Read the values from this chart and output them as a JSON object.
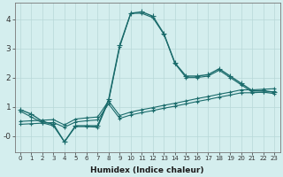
{
  "xlabel": "Humidex (Indice chaleur)",
  "bg_color": "#d4eeee",
  "line_color": "#1a6b6b",
  "grid_color": "#b8d8d8",
  "xlim": [
    -0.5,
    23.5
  ],
  "ylim": [
    -0.55,
    4.55
  ],
  "xticks": [
    0,
    1,
    2,
    3,
    4,
    5,
    6,
    7,
    8,
    9,
    10,
    11,
    12,
    13,
    14,
    15,
    16,
    17,
    18,
    19,
    20,
    21,
    22,
    23
  ],
  "yticks": [
    0,
    1,
    2,
    3,
    4
  ],
  "ytick_labels": [
    "-0",
    "1",
    "2",
    "3",
    "4"
  ],
  "series": [
    {
      "x": [
        0,
        1,
        2,
        3,
        4,
        5,
        6,
        7,
        8,
        9,
        10,
        11,
        12,
        13,
        14,
        15,
        16,
        17,
        18,
        19,
        20,
        21,
        22,
        23
      ],
      "y": [
        0.9,
        0.75,
        0.5,
        0.4,
        -0.2,
        0.35,
        0.35,
        0.35,
        1.25,
        3.1,
        4.2,
        4.25,
        4.1,
        3.5,
        2.5,
        2.05,
        2.05,
        2.1,
        2.3,
        2.05,
        1.8,
        1.55,
        1.55,
        1.5
      ],
      "marker": "+",
      "markersize": 4,
      "linewidth": 1.0
    },
    {
      "x": [
        0,
        1,
        2,
        3,
        4,
        5,
        6,
        7,
        8,
        9,
        10,
        11,
        12,
        13,
        14,
        15,
        16,
        17,
        18,
        19,
        20,
        21,
        22,
        23
      ],
      "y": [
        0.85,
        0.65,
        0.45,
        0.35,
        -0.2,
        0.32,
        0.32,
        0.3,
        1.2,
        3.05,
        4.2,
        4.2,
        4.05,
        3.48,
        2.48,
        2.0,
        2.0,
        2.05,
        2.25,
        2.0,
        1.75,
        1.5,
        1.5,
        1.45
      ],
      "marker": "+",
      "markersize": 3,
      "linewidth": 0.8
    },
    {
      "x": [
        0,
        1,
        2,
        3,
        4,
        5,
        6,
        7,
        8,
        9,
        10,
        11,
        12,
        13,
        14,
        15,
        16,
        17,
        18,
        19,
        20,
        21,
        22,
        23
      ],
      "y": [
        0.5,
        0.52,
        0.54,
        0.56,
        0.38,
        0.58,
        0.62,
        0.65,
        1.2,
        0.7,
        0.82,
        0.9,
        0.97,
        1.05,
        1.12,
        1.2,
        1.28,
        1.35,
        1.43,
        1.5,
        1.58,
        1.58,
        1.6,
        1.62
      ],
      "marker": "+",
      "markersize": 3,
      "linewidth": 0.8
    },
    {
      "x": [
        0,
        1,
        2,
        3,
        4,
        5,
        6,
        7,
        8,
        9,
        10,
        11,
        12,
        13,
        14,
        15,
        16,
        17,
        18,
        19,
        20,
        21,
        22,
        23
      ],
      "y": [
        0.4,
        0.42,
        0.44,
        0.46,
        0.3,
        0.48,
        0.52,
        0.55,
        1.1,
        0.6,
        0.72,
        0.8,
        0.87,
        0.95,
        1.02,
        1.1,
        1.18,
        1.25,
        1.33,
        1.4,
        1.48,
        1.48,
        1.5,
        1.52
      ],
      "marker": "+",
      "markersize": 3,
      "linewidth": 0.8
    }
  ]
}
